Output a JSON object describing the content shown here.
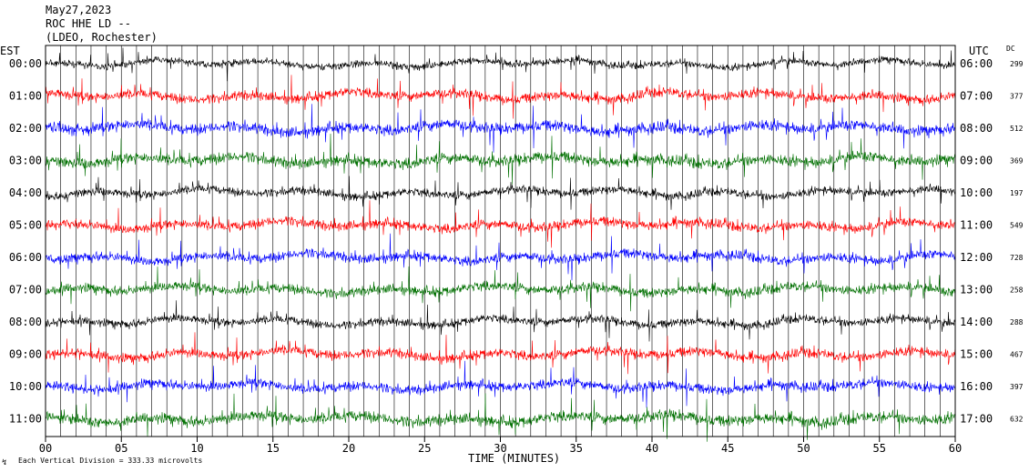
{
  "header": {
    "date": "May27,2023",
    "station": "ROC HHE LD --",
    "network": "(LDEO, Rochester)"
  },
  "chart_data": {
    "type": "line",
    "left_tz_label": "EST",
    "right_tz_label": "UTC",
    "dc_label": "DC",
    "xlabel": "TIME (MINUTES)",
    "xlim": [
      0,
      60
    ],
    "x_ticks": [
      "00",
      "05",
      "10",
      "15",
      "20",
      "25",
      "30",
      "35",
      "40",
      "45",
      "50",
      "55",
      "60"
    ],
    "footnote": "Each Vertical Division =  333.33 microvolts",
    "trace_colors": [
      "#000000",
      "#ff0000",
      "#0000ff",
      "#007000"
    ],
    "rows": [
      {
        "est": "00:00",
        "utc": "06:00",
        "dc": "299"
      },
      {
        "est": "01:00",
        "utc": "07:00",
        "dc": "377"
      },
      {
        "est": "02:00",
        "utc": "08:00",
        "dc": "512"
      },
      {
        "est": "03:00",
        "utc": "09:00",
        "dc": "369"
      },
      {
        "est": "04:00",
        "utc": "10:00",
        "dc": "197"
      },
      {
        "est": "05:00",
        "utc": "11:00",
        "dc": "549"
      },
      {
        "est": "06:00",
        "utc": "12:00",
        "dc": "728"
      },
      {
        "est": "07:00",
        "utc": "13:00",
        "dc": "258"
      },
      {
        "est": "08:00",
        "utc": "14:00",
        "dc": "288"
      },
      {
        "est": "09:00",
        "utc": "15:00",
        "dc": "467"
      },
      {
        "est": "10:00",
        "utc": "16:00",
        "dc": "397"
      },
      {
        "est": "11:00",
        "utc": "17:00",
        "dc": "632"
      }
    ]
  }
}
